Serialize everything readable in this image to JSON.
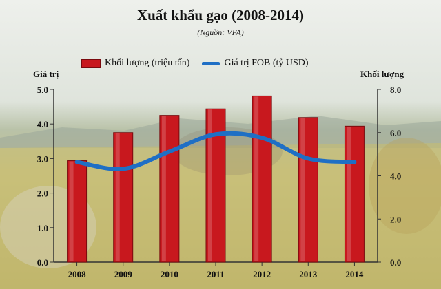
{
  "chart_data": {
    "type": "bar",
    "title": "Xuất khẩu gạo (2008-2014)",
    "subtitle": "(Nguồn: VFA)",
    "categories": [
      "2008",
      "2009",
      "2010",
      "2011",
      "2012",
      "2013",
      "2014"
    ],
    "series": [
      {
        "name": "Khối lượng (triệu tấn)",
        "type": "bar",
        "axis": "right",
        "color": "#c8181e",
        "values": [
          4.7,
          6.0,
          6.8,
          7.1,
          7.7,
          6.7,
          6.3
        ]
      },
      {
        "name": "Giá trị FOB (tỷ USD)",
        "type": "line",
        "axis": "left",
        "color": "#1f6fc5",
        "values": [
          2.9,
          2.7,
          3.2,
          3.7,
          3.6,
          3.0,
          2.9
        ]
      }
    ],
    "left_axis": {
      "label": "Giá trị",
      "ylim": [
        0,
        5
      ],
      "ticks": [
        "0.0",
        "1.0",
        "2.0",
        "3.0",
        "4.0",
        "5.0"
      ]
    },
    "right_axis": {
      "label": "Khối lượng",
      "ylim": [
        0,
        8
      ],
      "ticks": [
        "0.0",
        "2.0",
        "4.0",
        "6.0",
        "8.0"
      ]
    },
    "legend_position": "top",
    "grid": false
  }
}
